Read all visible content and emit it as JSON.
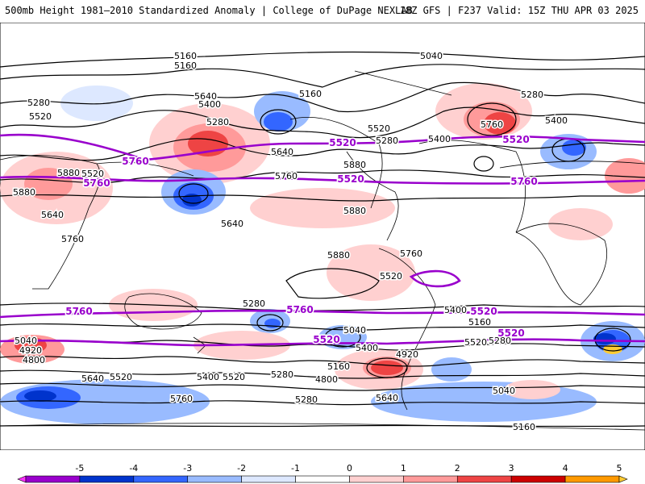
{
  "header": {
    "title": "500mb Height 1981–2010 Standardized Anomaly | College of DuPage NEXLAB",
    "run_info": "18Z GFS | F237 Valid: 15Z THU APR 03 2025"
  },
  "map": {
    "black_contour_labels": [
      "5160",
      "5040",
      "5160",
      "5280",
      "5640",
      "5400",
      "5520",
      "5280",
      "5520",
      "5160",
      "5280",
      "5400",
      "5520",
      "5280",
      "5400",
      "5640",
      "5760",
      "5880",
      "5880",
      "5880",
      "5880",
      "5640",
      "5760",
      "5880",
      "5760",
      "5760",
      "5640",
      "5520",
      "5400",
      "5280",
      "5160",
      "5040",
      "4920",
      "4800",
      "4920",
      "5040",
      "5160",
      "5280",
      "5400",
      "5520",
      "5640",
      "5760",
      "5400",
      "5520",
      "5280",
      "4800",
      "5040",
      "5160",
      "5280",
      "5640",
      "5520"
    ],
    "purple_contour_labels": [
      "5520",
      "5520",
      "5760",
      "5760",
      "5520",
      "5760",
      "5760",
      "5760",
      "5520",
      "5520",
      "5520"
    ]
  },
  "legend": {
    "ticks": [
      "-5",
      "-4",
      "-3",
      "-2",
      "-1",
      "0",
      "1",
      "2",
      "3",
      "4",
      "5"
    ],
    "colors": [
      "#ff33ff",
      "#9900cc",
      "#0033cc",
      "#3366ff",
      "#99bbff",
      "#dde8ff",
      "#ffffff",
      "#ffd0d0",
      "#ff9a9a",
      "#ee4444",
      "#cc0000",
      "#ff9900",
      "#ffcc33"
    ]
  }
}
